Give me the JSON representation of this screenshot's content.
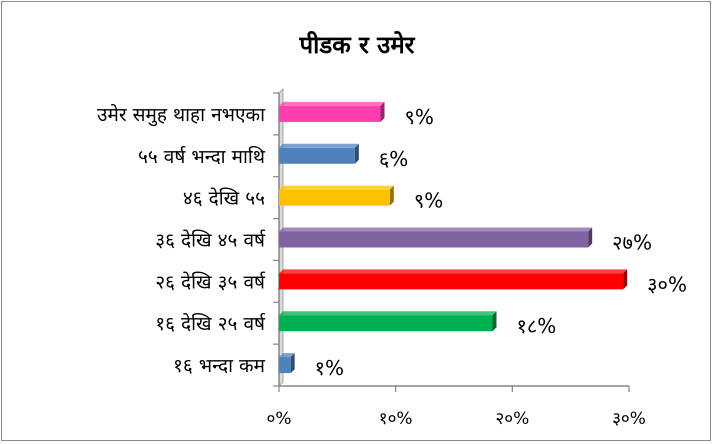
{
  "chart_data": {
    "type": "bar",
    "orientation": "horizontal",
    "title": "पीडक र उमेर",
    "categories": [
      "उमेर समुह थाहा नभएका",
      "५५ वर्ष भन्दा माथि",
      "४६ देखि ५५",
      "३६ देखि ४५ वर्ष",
      "२६ देखि ३५ वर्ष",
      "१६ देखि २५ वर्ष",
      "१६ भन्दा कम"
    ],
    "values": [
      8.7,
      6.5,
      9.5,
      26.5,
      29.5,
      18.3,
      1.0
    ],
    "data_labels": [
      "९%",
      "६%",
      "९%",
      "२७%",
      "३०%",
      "१८%",
      "१%"
    ],
    "colors": [
      "#ff3fae",
      "#4f81bd",
      "#ffc000",
      "#8064a2",
      "#ff0000",
      "#00b050",
      "#4f81bd"
    ],
    "xlim": [
      0,
      30
    ],
    "xticks": [
      0,
      10,
      20,
      30
    ],
    "xtick_labels": [
      "०%",
      "१०%",
      "२०%",
      "३०%"
    ],
    "xlabel": "",
    "ylabel": "",
    "grid": false,
    "legend": "none"
  }
}
